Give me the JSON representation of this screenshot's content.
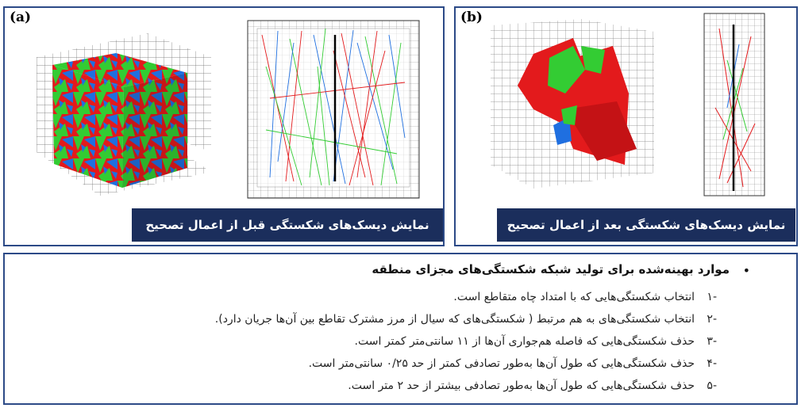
{
  "panel_a": {
    "label": "(a)",
    "caption": "نمایش دیسک‌های شکستگی قبل از اعمال تصحیح"
  },
  "panel_b": {
    "label": "(b)",
    "caption": "نمایش دیسک‌های شکستگی بعد از اعمال تصحیح"
  },
  "section": {
    "title": "موارد بهینه‌شده برای تولید شبکه شکستگی‌های مجزای منطقه",
    "bullet": "•",
    "items": [
      {
        "num": "-۱",
        "text": "انتخاب شکستگی‌هایی که با امتداد چاه متقاطع است."
      },
      {
        "num": "-۲",
        "text": "انتخاب شکستگی‌های به هم مرتبط ( شکستگی‌های که سیال از مرز مشترک تقاطع بین آن‌ها جریان دارد)."
      },
      {
        "num": "-۳",
        "text": "حذف شکستگی‌هایی که فاصله هم‌جواری آن‌ها از ۱۱ سانتی‌متر کمتر است."
      },
      {
        "num": "-۴",
        "text": "حذف شکستگی‌هایی که طول آن‌ها به‌طور تصادفی کمتر از حد ۰/۲۵ سانتی‌متر است."
      },
      {
        "num": "-۵",
        "text": "حذف شکستگی‌هایی که طول آن‌ها به‌طور تصادفی بیشتر از حد ۲ متر است."
      }
    ]
  },
  "colors": {
    "frame": "#2c4a87",
    "caption_bg": "#1b2e5c",
    "fracture_red": "#e31a1c",
    "fracture_green": "#33cc33",
    "fracture_blue": "#1f6fe0"
  }
}
